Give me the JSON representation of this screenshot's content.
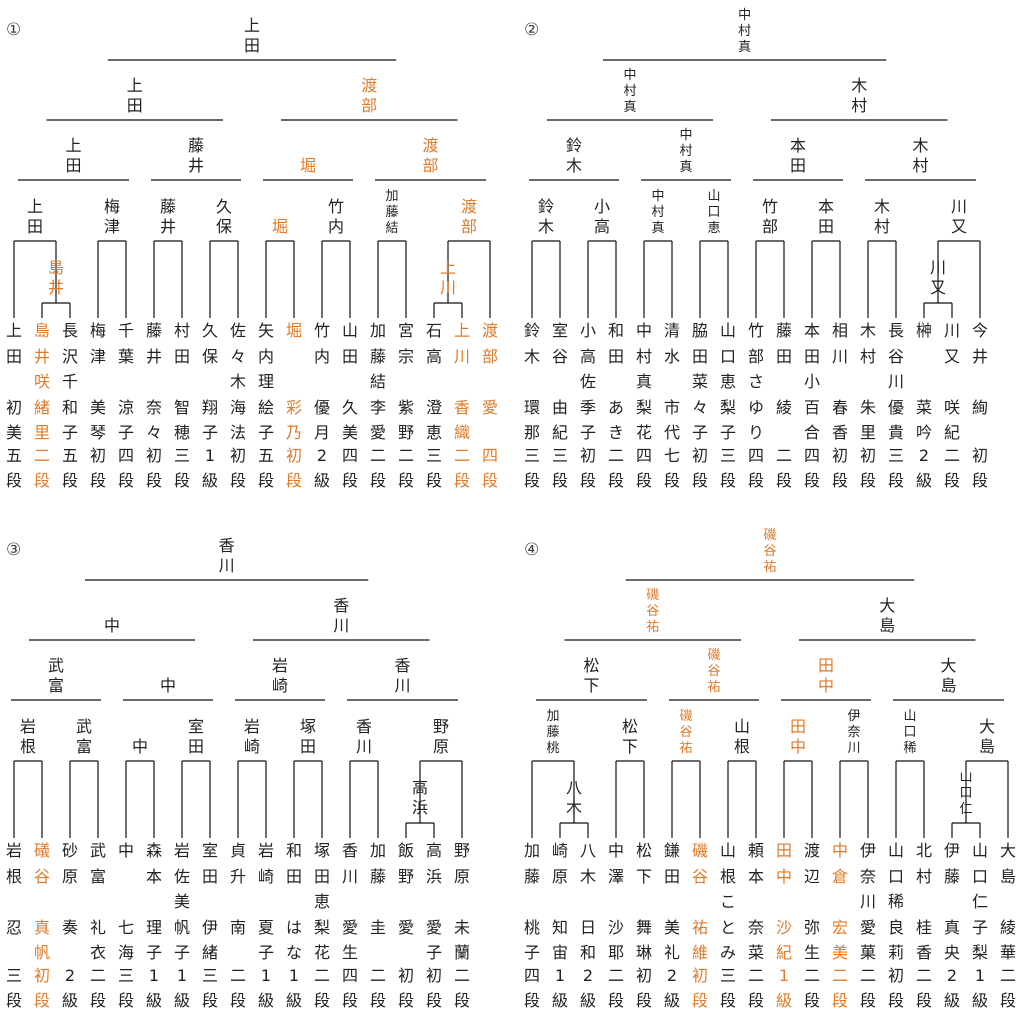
{
  "colors": {
    "winner": "#E07B2A",
    "text": "#222222"
  },
  "brackets": [
    {
      "number": "①",
      "players": [
        {
          "surname": "上田",
          "given": "初美",
          "rank": "五段",
          "hl": false
        },
        {
          "surname": "島井",
          "given": "咲緒里",
          "rank": "二段",
          "hl": true
        },
        {
          "surname": "長沢",
          "given": "千和子",
          "rank": "五段",
          "hl": false
        },
        {
          "surname": "梅津",
          "given": "美琴",
          "rank": "初段",
          "hl": false
        },
        {
          "surname": "千葉",
          "given": "涼子",
          "rank": "四段",
          "hl": false
        },
        {
          "surname": "藤井",
          "given": "奈々",
          "rank": "初段",
          "hl": false
        },
        {
          "surname": "村田",
          "given": "智穂",
          "rank": "三段",
          "hl": false
        },
        {
          "surname": "久保",
          "given": "翔子",
          "rank": "1級",
          "hl": false
        },
        {
          "surname": "佐々木",
          "given": "海法",
          "rank": "初段",
          "hl": false
        },
        {
          "surname": "矢内",
          "given": "理絵子",
          "rank": "五段",
          "hl": false
        },
        {
          "surname": "堀",
          "given": "彩乃",
          "rank": "初段",
          "hl": true
        },
        {
          "surname": "竹内",
          "given": "優月",
          "rank": "2級",
          "hl": false
        },
        {
          "surname": "山田",
          "given": "久美",
          "rank": "四段",
          "hl": false
        },
        {
          "surname": "加藤結",
          "given": "李愛",
          "rank": "二段",
          "hl": false
        },
        {
          "surname": "宮宗",
          "given": "紫野",
          "rank": "二段",
          "hl": false
        },
        {
          "surname": "石高",
          "given": "澄恵",
          "rank": "三段",
          "hl": false
        },
        {
          "surname": "上川",
          "given": "香織",
          "rank": "二段",
          "hl": true
        },
        {
          "surname": "渡部",
          "given": "愛",
          "rank": "四段",
          "hl": true
        }
      ],
      "prelim": {
        "winner": "島井",
        "hl": true,
        "extra": "上川",
        "extra_hl": true
      },
      "round1": [
        {
          "name": "上田",
          "hl": false
        },
        {
          "name": "梅津",
          "hl": false
        },
        {
          "name": "藤井",
          "hl": false
        },
        {
          "name": "久保",
          "hl": false
        },
        {
          "name": "堀",
          "hl": true
        },
        {
          "name": "竹内",
          "hl": false
        },
        {
          "name": "加藤結",
          "hl": false
        },
        {
          "name": "渡部",
          "hl": true
        }
      ],
      "round2": [
        {
          "name": "上田",
          "hl": false
        },
        {
          "name": "藤井",
          "hl": false
        },
        {
          "name": "堀",
          "hl": true
        },
        {
          "name": "渡部",
          "hl": true
        }
      ],
      "round3": [
        {
          "name": "上田",
          "hl": false
        },
        {
          "name": "渡部",
          "hl": true
        }
      ],
      "champion": {
        "name": "上田",
        "hl": false
      }
    },
    {
      "number": "②",
      "players": [
        {
          "surname": "鈴木",
          "given": "環那",
          "rank": "三段",
          "hl": false
        },
        {
          "surname": "室谷",
          "given": "由紀",
          "rank": "三段",
          "hl": false
        },
        {
          "surname": "小高佐",
          "given": "季子",
          "rank": "初段",
          "hl": false
        },
        {
          "surname": "和田",
          "given": "あき",
          "rank": "二段",
          "hl": false
        },
        {
          "surname": "中村真",
          "given": "梨花",
          "rank": "四段",
          "hl": false
        },
        {
          "surname": "清水",
          "given": "市代",
          "rank": "七段",
          "hl": false
        },
        {
          "surname": "脇田菜",
          "given": "々子",
          "rank": "初段",
          "hl": false
        },
        {
          "surname": "山口恵",
          "given": "梨子",
          "rank": "三段",
          "hl": false
        },
        {
          "surname": "竹部さ",
          "given": "ゆり",
          "rank": "四段",
          "hl": false
        },
        {
          "surname": "藤田",
          "given": "綾",
          "rank": "二段",
          "hl": false
        },
        {
          "surname": "本田小",
          "given": "百合",
          "rank": "四段",
          "hl": false
        },
        {
          "surname": "相川",
          "given": "春香",
          "rank": "初段",
          "hl": false
        },
        {
          "surname": "木村",
          "given": "朱里",
          "rank": "初段",
          "hl": false
        },
        {
          "surname": "長谷川",
          "given": "優貴",
          "rank": "三段",
          "hl": false
        },
        {
          "surname": "榊",
          "given": "菜吟",
          "rank": "2級",
          "hl": false
        },
        {
          "surname": "川又",
          "given": "咲紀",
          "rank": "二段",
          "hl": false
        },
        {
          "surname": "今井",
          "given": "絢",
          "rank": "初段",
          "hl": false
        }
      ],
      "prelim": {
        "winner": "川又",
        "hl": false
      },
      "round1": [
        {
          "name": "鈴木",
          "hl": false
        },
        {
          "name": "小高",
          "hl": false
        },
        {
          "name": "中村真",
          "hl": false
        },
        {
          "name": "山口恵",
          "hl": false
        },
        {
          "name": "竹部",
          "hl": false
        },
        {
          "name": "本田",
          "hl": false
        },
        {
          "name": "木村",
          "hl": false
        },
        {
          "name": "川又",
          "hl": false
        }
      ],
      "round2": [
        {
          "name": "鈴木",
          "hl": false
        },
        {
          "name": "中村真",
          "hl": false
        },
        {
          "name": "本田",
          "hl": false
        },
        {
          "name": "木村",
          "hl": false
        }
      ],
      "round3": [
        {
          "name": "中村真",
          "hl": false
        },
        {
          "name": "木村",
          "hl": false
        }
      ],
      "champion": {
        "name": "中村真",
        "hl": false
      }
    },
    {
      "number": "③",
      "players": [
        {
          "surname": "岩根",
          "given": "忍",
          "rank": "三段",
          "hl": false
        },
        {
          "surname": "礒谷",
          "given": "真帆",
          "rank": "初段",
          "hl": true
        },
        {
          "surname": "砂原",
          "given": "奏",
          "rank": "2級",
          "hl": false
        },
        {
          "surname": "武富",
          "given": "礼衣",
          "rank": "二段",
          "hl": false
        },
        {
          "surname": "中",
          "given": "七海",
          "rank": "三段",
          "hl": false
        },
        {
          "surname": "森本",
          "given": "理子",
          "rank": "1級",
          "hl": false
        },
        {
          "surname": "岩佐美",
          "given": "帆子",
          "rank": "1級",
          "hl": false
        },
        {
          "surname": "室田",
          "given": "伊緒",
          "rank": "三段",
          "hl": false
        },
        {
          "surname": "貞升",
          "given": "南",
          "rank": "二段",
          "hl": false
        },
        {
          "surname": "岩崎",
          "given": "夏子",
          "rank": "1級",
          "hl": false
        },
        {
          "surname": "和田",
          "given": "はな",
          "rank": "1級",
          "hl": false
        },
        {
          "surname": "塚田恵",
          "given": "梨花",
          "rank": "二段",
          "hl": false
        },
        {
          "surname": "香川",
          "given": "愛生",
          "rank": "四段",
          "hl": false
        },
        {
          "surname": "加藤",
          "given": "圭",
          "rank": "二段",
          "hl": false
        },
        {
          "surname": "飯野",
          "given": "愛",
          "rank": "初段",
          "hl": false
        },
        {
          "surname": "高浜",
          "given": "愛子",
          "rank": "初段",
          "hl": false
        },
        {
          "surname": "野原",
          "given": "未蘭",
          "rank": "二段",
          "hl": false
        }
      ],
      "prelim": {
        "winner": "高浜",
        "hl": false
      },
      "round1": [
        {
          "name": "岩根",
          "hl": false
        },
        {
          "name": "武富",
          "hl": false
        },
        {
          "name": "中",
          "hl": false
        },
        {
          "name": "室田",
          "hl": false
        },
        {
          "name": "岩崎",
          "hl": false
        },
        {
          "name": "塚田",
          "hl": false
        },
        {
          "name": "香川",
          "hl": false
        },
        {
          "name": "野原",
          "hl": false
        }
      ],
      "round2": [
        {
          "name": "武富",
          "hl": false
        },
        {
          "name": "中",
          "hl": false
        },
        {
          "name": "岩崎",
          "hl": false
        },
        {
          "name": "香川",
          "hl": false
        }
      ],
      "round3": [
        {
          "name": "中",
          "hl": false
        },
        {
          "name": "香川",
          "hl": false
        }
      ],
      "champion": {
        "name": "香川",
        "hl": false
      }
    },
    {
      "number": "④",
      "players": [
        {
          "surname": "加藤",
          "given": "桃子",
          "rank": "四段",
          "hl": false
        },
        {
          "surname": "崎原",
          "given": "知宙",
          "rank": "1級",
          "hl": false
        },
        {
          "surname": "八木",
          "given": "日和",
          "rank": "2級",
          "hl": false
        },
        {
          "surname": "中澤",
          "given": "沙耶",
          "rank": "二段",
          "hl": false
        },
        {
          "surname": "松下",
          "given": "舞琳",
          "rank": "初段",
          "hl": false
        },
        {
          "surname": "鎌田",
          "given": "美礼",
          "rank": "2級",
          "hl": false
        },
        {
          "surname": "磯谷",
          "given": "祐維",
          "rank": "初段",
          "hl": true
        },
        {
          "surname": "山根こ",
          "given": "とみ",
          "rank": "三段",
          "hl": false
        },
        {
          "surname": "頼本",
          "given": "奈菜",
          "rank": "二段",
          "hl": false
        },
        {
          "surname": "田中",
          "given": "沙紀",
          "rank": "1級",
          "hl": true
        },
        {
          "surname": "渡辺",
          "given": "弥生",
          "rank": "二段",
          "hl": false
        },
        {
          "surname": "中倉",
          "given": "宏美",
          "rank": "二段",
          "hl": true
        },
        {
          "surname": "伊奈川",
          "given": "愛菓",
          "rank": "二段",
          "hl": false
        },
        {
          "surname": "山口稀",
          "given": "良莉",
          "rank": "初段",
          "hl": false
        },
        {
          "surname": "北村",
          "given": "桂香",
          "rank": "二段",
          "hl": false
        },
        {
          "surname": "伊藤",
          "given": "真央",
          "rank": "2級",
          "hl": false
        },
        {
          "surname": "山口仁",
          "given": "子梨",
          "rank": "1級",
          "hl": false
        },
        {
          "surname": "大島",
          "given": "綾華",
          "rank": "二段",
          "hl": false
        }
      ],
      "prelim": {
        "winner": "八木",
        "hl": false,
        "extra": "山口仁",
        "extra_hl": false
      },
      "round1": [
        {
          "name": "加藤桃",
          "hl": false
        },
        {
          "name": "松下",
          "hl": false
        },
        {
          "name": "磯谷祐",
          "hl": true
        },
        {
          "name": "山根",
          "hl": false
        },
        {
          "name": "田中",
          "hl": true
        },
        {
          "name": "伊奈川",
          "hl": false
        },
        {
          "name": "山口稀",
          "hl": false
        },
        {
          "name": "大島",
          "hl": false
        }
      ],
      "round2": [
        {
          "name": "松下",
          "hl": false
        },
        {
          "name": "磯谷祐",
          "hl": true
        },
        {
          "name": "田中",
          "hl": true
        },
        {
          "name": "大島",
          "hl": false
        }
      ],
      "round3": [
        {
          "name": "磯谷祐",
          "hl": true
        },
        {
          "name": "大島",
          "hl": false
        }
      ],
      "champion": {
        "name": "磯谷祐",
        "hl": true
      }
    }
  ]
}
